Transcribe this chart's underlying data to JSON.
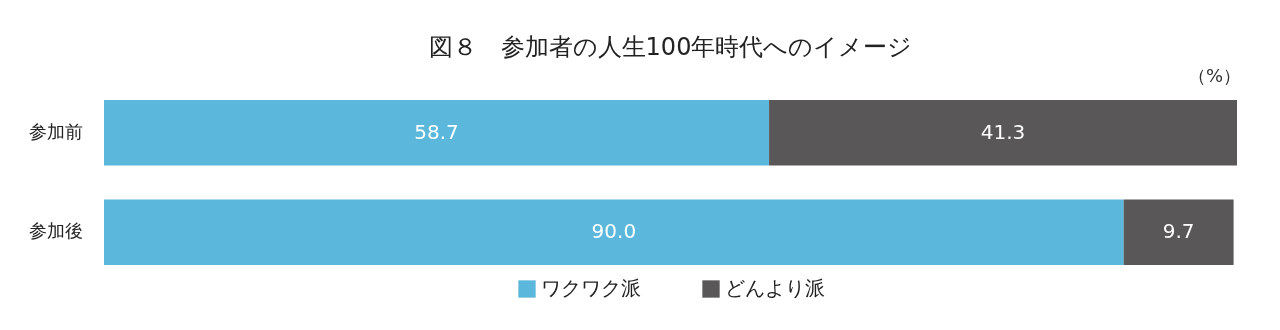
{
  "chart_data": {
    "type": "bar",
    "orientation": "horizontal",
    "stacked": true,
    "title": "図８　参加者の人生100年時代へのイメージ",
    "annotations": [
      "（%）"
    ],
    "categories": [
      "参加前",
      "参加後"
    ],
    "tick_labels": "y",
    "legend": "bottom",
    "series": [
      {
        "name": "ワクワク派",
        "color": "#5bb8dc",
        "values": [
          58.7,
          90.0
        ],
        "value_labels": [
          "58.7",
          "90.0"
        ]
      },
      {
        "name": "どんより派",
        "color": "#595757",
        "values": [
          41.3,
          9.7
        ],
        "value_labels": [
          "41.3",
          "9.7"
        ]
      }
    ]
  }
}
